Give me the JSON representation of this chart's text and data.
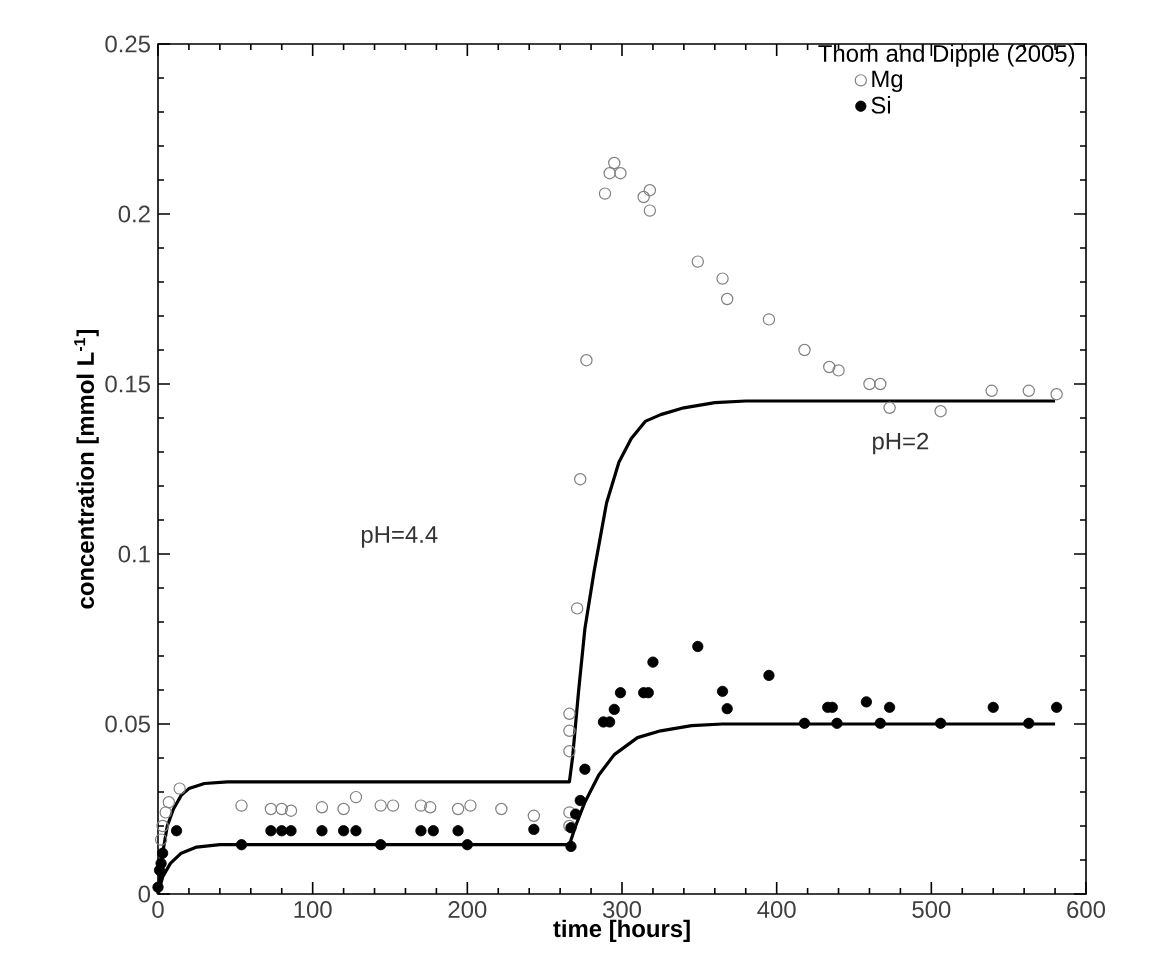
{
  "chart_data": {
    "type": "scatter",
    "xlabel": "time [hours]",
    "ylabel": "concentration [mmol L$^{-1}$]",
    "legend_title": "Thom and  Dipple (2005)",
    "legend": "top right",
    "grid": false,
    "marker": "circle",
    "xlim": [
      0,
      600
    ],
    "ylim": [
      0,
      0.25
    ],
    "xticks": [
      0,
      100,
      200,
      300,
      400,
      500,
      600
    ],
    "yticks": [
      0,
      0.05,
      0.1,
      0.15,
      0.2,
      0.25
    ],
    "annotations": [
      "pH=4.4",
      "pH=2"
    ],
    "series": [
      {
        "name": "Mg",
        "color": "#808080",
        "x": [
          2,
          3,
          5,
          7,
          14,
          54,
          73,
          80,
          86,
          106,
          120,
          128,
          144,
          152,
          170,
          176,
          194,
          202,
          222,
          243,
          266,
          266,
          266,
          266,
          266,
          271,
          273,
          277,
          289,
          292,
          295,
          299,
          314,
          318,
          318,
          349,
          365,
          368,
          395,
          418,
          434,
          440,
          460,
          467,
          473,
          506,
          539,
          563,
          581
        ],
        "values": [
          0.016,
          0.02,
          0.024,
          0.027,
          0.031,
          0.026,
          0.025,
          0.025,
          0.0245,
          0.0255,
          0.025,
          0.0285,
          0.026,
          0.026,
          0.026,
          0.0255,
          0.025,
          0.026,
          0.025,
          0.023,
          0.024,
          0.02,
          0.042,
          0.048,
          0.053,
          0.084,
          0.122,
          0.157,
          0.206,
          0.212,
          0.215,
          0.212,
          0.205,
          0.207,
          0.201,
          0.186,
          0.181,
          0.175,
          0.169,
          0.16,
          0.155,
          0.154,
          0.15,
          0.15,
          0.143,
          0.142,
          0.148,
          0.148,
          0.147
        ]
      },
      {
        "name": "Si",
        "color": "#000000",
        "x": [
          0,
          1,
          2,
          3,
          12,
          54,
          73,
          80,
          86,
          106,
          120,
          128,
          144,
          170,
          178,
          194,
          200,
          243,
          267,
          267,
          270,
          273,
          276,
          288,
          292,
          295,
          299,
          314,
          317,
          320,
          349,
          365,
          368,
          395,
          418,
          433,
          436,
          439,
          458,
          467,
          473,
          506,
          540,
          563,
          581
        ],
        "values": [
          0.002,
          0.007,
          0.009,
          0.012,
          0.0186,
          0.0145,
          0.0186,
          0.0186,
          0.0186,
          0.0186,
          0.0186,
          0.0186,
          0.0145,
          0.0186,
          0.0186,
          0.0186,
          0.0145,
          0.019,
          0.014,
          0.0195,
          0.0235,
          0.0275,
          0.0367,
          0.0506,
          0.0506,
          0.0543,
          0.0592,
          0.0592,
          0.0592,
          0.0682,
          0.0728,
          0.0596,
          0.0545,
          0.0643,
          0.0502,
          0.0549,
          0.0549,
          0.0502,
          0.0565,
          0.0502,
          0.0549,
          0.0502,
          0.0549,
          0.0502,
          0.0549
        ]
      },
      {
        "type": "line",
        "color": "#000000",
        "marker": "none",
        "line_style": "solid",
        "x": [
          0,
          3,
          6,
          10,
          15,
          20,
          30,
          45,
          266,
          268,
          272,
          276,
          282,
          290,
          298,
          306,
          315,
          325,
          340,
          360,
          380,
          580
        ],
        "values": [
          0,
          0.012,
          0.02,
          0.025,
          0.029,
          0.031,
          0.0325,
          0.033,
          0.033,
          0.04,
          0.06,
          0.078,
          0.095,
          0.115,
          0.127,
          0.134,
          0.139,
          0.141,
          0.143,
          0.1445,
          0.145,
          0.145
        ]
      },
      {
        "type": "line",
        "color": "#000000",
        "marker": "none",
        "line_style": "solid",
        "x": [
          0,
          3,
          8,
          15,
          25,
          40,
          266,
          270,
          276,
          285,
          295,
          310,
          325,
          345,
          365,
          580
        ],
        "values": [
          0,
          0.005,
          0.009,
          0.012,
          0.0138,
          0.0145,
          0.0145,
          0.02,
          0.027,
          0.035,
          0.041,
          0.046,
          0.048,
          0.0495,
          0.05,
          0.05
        ]
      }
    ]
  }
}
